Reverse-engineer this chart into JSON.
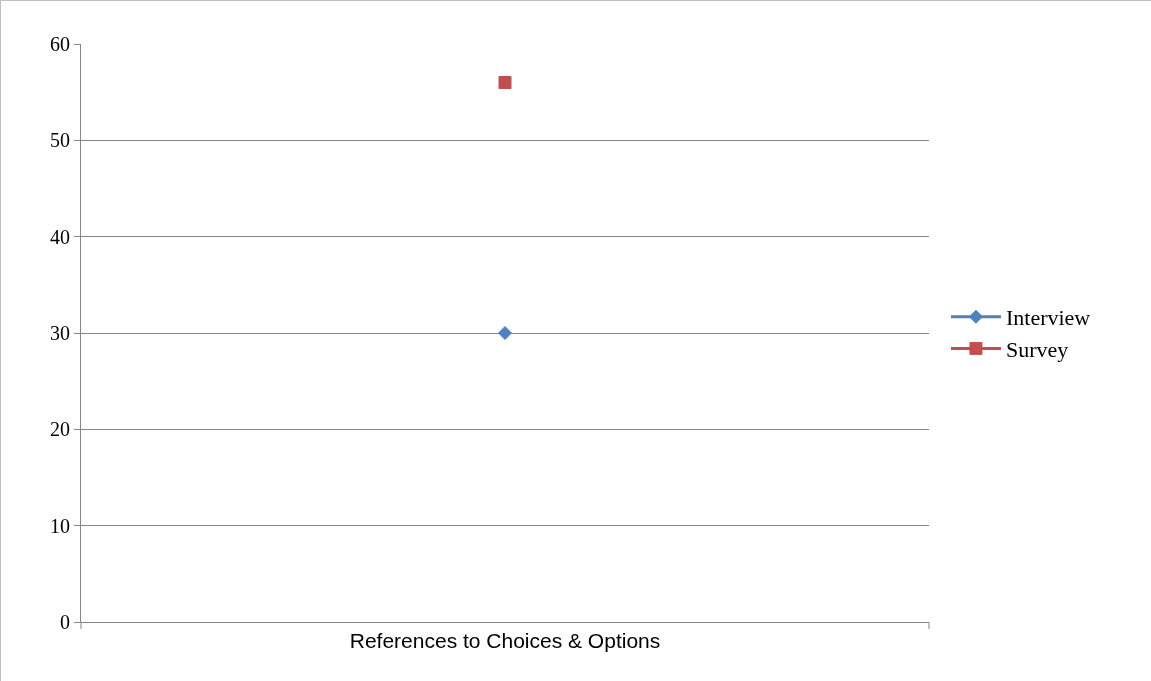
{
  "chart_data": {
    "type": "line",
    "categories": [
      "References to Choices & Options"
    ],
    "series": [
      {
        "name": "Interview",
        "color": "#4f81bd",
        "values": [
          30
        ],
        "marker": "diamond"
      },
      {
        "name": "Survey",
        "color": "#c0504d",
        "values": [
          56
        ],
        "marker": "square"
      }
    ],
    "ylim": [
      0,
      60
    ],
    "yticks": [
      0,
      10,
      20,
      30,
      40,
      50,
      60
    ],
    "grid": "y",
    "legend": "right",
    "line_style": "solid"
  }
}
